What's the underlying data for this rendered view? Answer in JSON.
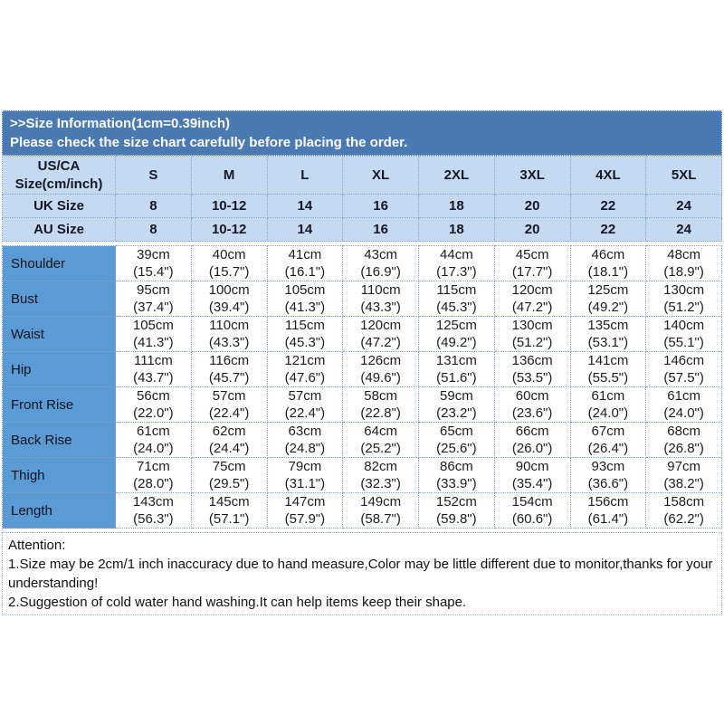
{
  "banner": {
    "line1": ">>Size Information(1cm=0.39inch)",
    "line2": "Please check the size chart carefully before placing the order."
  },
  "table": {
    "corner": {
      "line1": "US/CA",
      "line2": "Size(cm/inch)"
    },
    "size_columns": [
      "S",
      "M",
      "L",
      "XL",
      "2XL",
      "3XL",
      "4XL",
      "5XL"
    ],
    "size_rows": [
      {
        "label": "UK Size",
        "values": [
          "8",
          "10-12",
          "14",
          "16",
          "18",
          "20",
          "22",
          "24"
        ]
      },
      {
        "label": "AU Size",
        "values": [
          "8",
          "10-12",
          "14",
          "16",
          "18",
          "20",
          "22",
          "24"
        ]
      }
    ],
    "measurement_rows": [
      {
        "label": "Shoulder",
        "cm": [
          "39cm",
          "40cm",
          "41cm",
          "43cm",
          "44cm",
          "45cm",
          "46cm",
          "48cm"
        ],
        "inch": [
          "(15.4\")",
          "(15.7\")",
          "(16.1\")",
          "(16.9\")",
          "(17.3\")",
          "(17.7\")",
          "(18.1\")",
          "(18.9\")"
        ]
      },
      {
        "label": "Bust",
        "cm": [
          "95cm",
          "100cm",
          "105cm",
          "110cm",
          "115cm",
          "120cm",
          "125cm",
          "130cm"
        ],
        "inch": [
          "(37.4\")",
          "(39.4\")",
          "(41.3\")",
          "(43.3\")",
          "(45.3\")",
          "(47.2\")",
          "(49.2\")",
          "(51.2\")"
        ]
      },
      {
        "label": "Waist",
        "cm": [
          "105cm",
          "110cm",
          "115cm",
          "120cm",
          "125cm",
          "130cm",
          "135cm",
          "140cm"
        ],
        "inch": [
          "(41.3\")",
          "(43.3\")",
          "(45.3\")",
          "(47.2\")",
          "(49.2\")",
          "(51.2\")",
          "(53.1\")",
          "(55.1\")"
        ]
      },
      {
        "label": "Hip",
        "cm": [
          "111cm",
          "116cm",
          "121cm",
          "126cm",
          "131cm",
          "136cm",
          "141cm",
          "146cm"
        ],
        "inch": [
          "(43.7\")",
          "(45.7\")",
          "(47.6\")",
          "(49.6\")",
          "(51.6\")",
          "(53.5\")",
          "(55.5\")",
          "(57.5\")"
        ]
      },
      {
        "label": "Front Rise",
        "cm": [
          "56cm",
          "57cm",
          "57cm",
          "58cm",
          "59cm",
          "60cm",
          "61cm",
          "61cm"
        ],
        "inch": [
          "(22.0\")",
          "(22.4\")",
          "(22.4\")",
          "(22.8\")",
          "(23.2\")",
          "(23.6\")",
          "(24.0\")",
          "(24.0\")"
        ]
      },
      {
        "label": "Back Rise",
        "cm": [
          "61cm",
          "62cm",
          "63cm",
          "64cm",
          "65cm",
          "66cm",
          "67cm",
          "68cm"
        ],
        "inch": [
          "(24.0\")",
          "(24.4\")",
          "(24.8\")",
          "(25.2\")",
          "(25.6\")",
          "(26.0\")",
          "(26.4\")",
          "(26.8\")"
        ]
      },
      {
        "label": "Thigh",
        "cm": [
          "71cm",
          "75cm",
          "79cm",
          "82cm",
          "86cm",
          "90cm",
          "93cm",
          "97cm"
        ],
        "inch": [
          "(28.0\")",
          "(29.5\")",
          "(31.1\")",
          "(32.3\")",
          "(33.9\")",
          "(35.4\")",
          "(36.6\")",
          "(38.2\")"
        ]
      },
      {
        "label": "Length",
        "cm": [
          "143cm",
          "145cm",
          "147cm",
          "149cm",
          "152cm",
          "154cm",
          "156cm",
          "158cm"
        ],
        "inch": [
          "(56.3\")",
          "(57.1\")",
          "(57.9\")",
          "(58.7\")",
          "(59.8\")",
          "(60.6\")",
          "(61.4\")",
          "(62.2\")"
        ]
      }
    ]
  },
  "attention": {
    "title": "Attention:",
    "note1": "1.Size may be 2cm/1 inch inaccuracy due to hand measure,Color may be little different due to monitor,thanks for your understanding!",
    "note2": "2.Suggestion of cold water hand washing.It can help items keep their shape."
  },
  "colors": {
    "banner_bg": "#4b7ab3",
    "header_row_bg": "#c5d9f1",
    "label_col_bg": "#5b9bd5",
    "cell_border": "#7fa5d1",
    "attention_border": "#9ab0c8"
  }
}
